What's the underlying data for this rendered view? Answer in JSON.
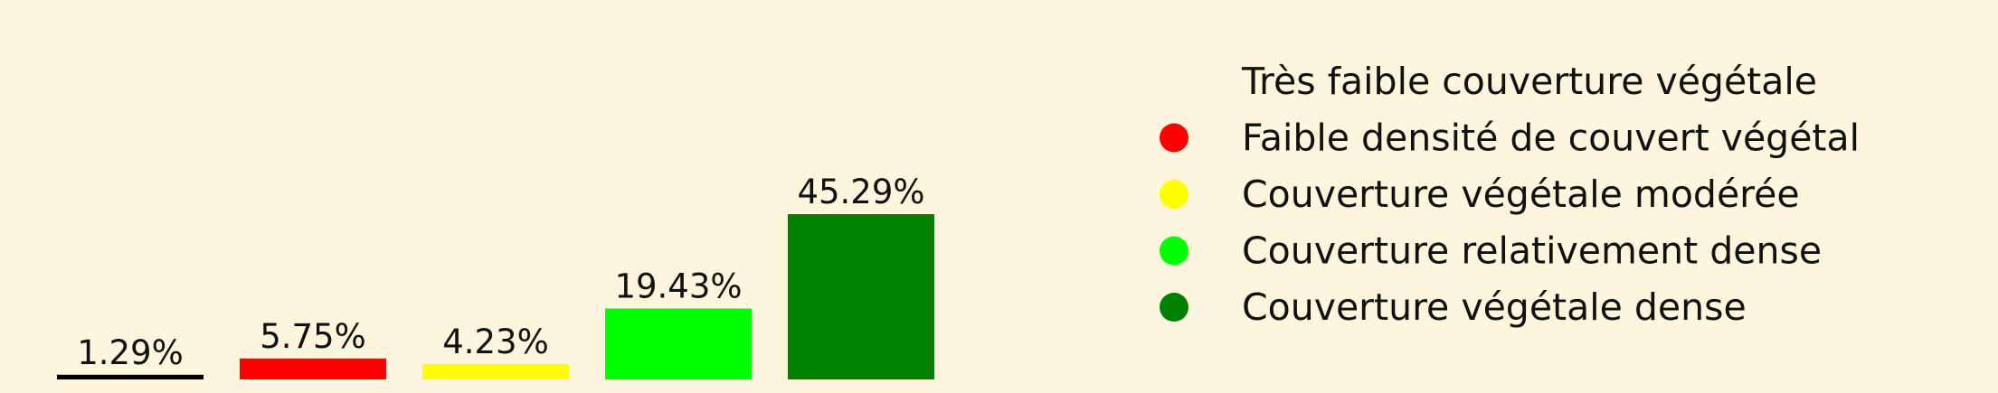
{
  "chart_data": {
    "type": "bar",
    "categories": [
      "Très faible couverture végétale",
      "Faible densité de couvert végétal",
      "Couverture végétale modérée",
      "Couverture relativement dense",
      "Couverture végétale dense"
    ],
    "values": [
      1.29,
      5.75,
      4.23,
      19.43,
      45.29
    ],
    "value_labels": [
      "1.29%",
      "5.75%",
      "4.23%",
      "19.43%",
      "45.29%"
    ],
    "colors": [
      "#000000",
      "#ff0000",
      "#ffff00",
      "#00ff00",
      "#008000"
    ],
    "ylim": [
      0,
      45.29
    ],
    "grid": false,
    "legend_position": "right",
    "background": "#fdf6dc"
  }
}
